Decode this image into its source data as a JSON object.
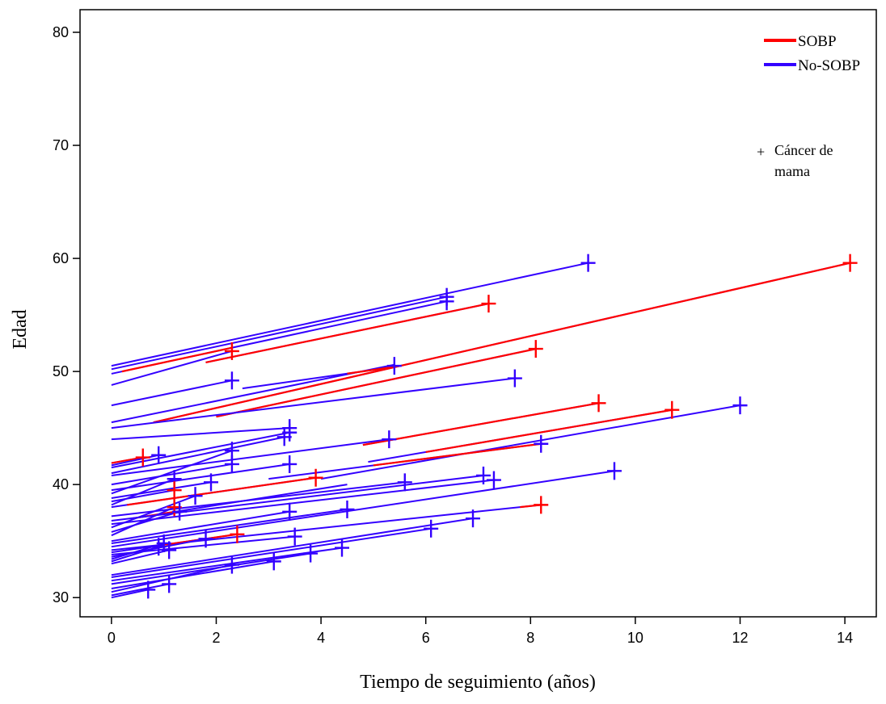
{
  "chart_data": {
    "type": "line",
    "title": "",
    "xlabel": "Tiempo de seguimiento (años)",
    "ylabel": "Edad",
    "xlim": [
      -0.6,
      14.6
    ],
    "ylim": [
      28.3,
      82.0
    ],
    "x_ticks": [
      0,
      2,
      4,
      6,
      8,
      10,
      12,
      14
    ],
    "y_ticks": [
      30,
      40,
      50,
      60,
      70,
      80
    ],
    "grid": false,
    "legend": {
      "position": "top-right",
      "entries": [
        {
          "name": "SOBP",
          "color": "#ff0000"
        },
        {
          "name": "No-SOBP",
          "color": "#3300ff"
        }
      ]
    },
    "marker_note": {
      "symbol": "+",
      "line1": "Cáncer de",
      "line2": "mama"
    },
    "colors": {
      "SOBP": "#ff0000",
      "No-SOBP": "#3300ff",
      "marker": "#000000"
    },
    "segments": [
      {
        "x1": 0,
        "y1": 50.5,
        "x2": 9.1,
        "y2": 59.6,
        "sobp_from": null,
        "sobp_to": null
      },
      {
        "x1": 0,
        "y1": 50.2,
        "x2": 6.4,
        "y2": 56.6,
        "sobp_from": null,
        "sobp_to": null
      },
      {
        "x1": 0,
        "y1": 49.8,
        "x2": 6.4,
        "y2": 56.2,
        "sobp_from": 0.2,
        "sobp_to": 2.3
      },
      {
        "x1": 1.8,
        "y1": 50.8,
        "x2": 7.2,
        "y2": 56.0,
        "sobp_from": 1.8,
        "sobp_to": 7.2
      },
      {
        "x1": 0.8,
        "y1": 45.5,
        "x2": 14.1,
        "y2": 59.6,
        "sobp_from": 0.8,
        "sobp_to": 14.1
      },
      {
        "x1": 0,
        "y1": 48.8,
        "x2": 2.3,
        "y2": 51.8,
        "sobp_from": null,
        "sobp_to": null
      },
      {
        "x1": 0,
        "y1": 47.0,
        "x2": 2.3,
        "y2": 49.2,
        "sobp_from": null,
        "sobp_to": null
      },
      {
        "x1": 0,
        "y1": 45.5,
        "x2": 5.4,
        "y2": 50.6,
        "sobp_from": null,
        "sobp_to": null
      },
      {
        "x1": 2.5,
        "y1": 48.5,
        "x2": 5.4,
        "y2": 50.4,
        "sobp_from": 4.5,
        "sobp_to": 5.4
      },
      {
        "x1": 2.0,
        "y1": 46.0,
        "x2": 8.1,
        "y2": 52.0,
        "sobp_from": 2.0,
        "sobp_to": 8.1
      },
      {
        "x1": 0,
        "y1": 45.0,
        "x2": 7.7,
        "y2": 49.4,
        "sobp_from": null,
        "sobp_to": null
      },
      {
        "x1": 0,
        "y1": 44.0,
        "x2": 3.4,
        "y2": 45.0,
        "sobp_from": null,
        "sobp_to": null
      },
      {
        "x1": 4.8,
        "y1": 43.5,
        "x2": 9.3,
        "y2": 47.2,
        "sobp_from": 4.8,
        "sobp_to": 9.3
      },
      {
        "x1": 4.9,
        "y1": 42.0,
        "x2": 10.7,
        "y2": 46.6,
        "sobp_from": 6.0,
        "sobp_to": 10.7
      },
      {
        "x1": 4.0,
        "y1": 40.5,
        "x2": 12.0,
        "y2": 47.0,
        "sobp_from": null,
        "sobp_to": null
      },
      {
        "x1": 0,
        "y1": 41.5,
        "x2": 3.4,
        "y2": 44.6,
        "sobp_from": null,
        "sobp_to": null
      },
      {
        "x1": 0,
        "y1": 41.0,
        "x2": 3.3,
        "y2": 44.2,
        "sobp_from": null,
        "sobp_to": null
      },
      {
        "x1": 0,
        "y1": 41.9,
        "x2": 0.6,
        "y2": 42.4,
        "sobp_from": 0.0,
        "sobp_to": 0.6
      },
      {
        "x1": 0,
        "y1": 41.7,
        "x2": 0.9,
        "y2": 42.6,
        "sobp_from": null,
        "sobp_to": null
      },
      {
        "x1": 0,
        "y1": 40.8,
        "x2": 5.3,
        "y2": 44.0,
        "sobp_from": null,
        "sobp_to": null
      },
      {
        "x1": 3.0,
        "y1": 40.5,
        "x2": 8.2,
        "y2": 43.6,
        "sobp_from": 5.0,
        "sobp_to": 8.2
      },
      {
        "x1": 0,
        "y1": 40.0,
        "x2": 2.3,
        "y2": 41.8,
        "sobp_from": null,
        "sobp_to": null
      },
      {
        "x1": 0,
        "y1": 39.5,
        "x2": 3.4,
        "y2": 41.8,
        "sobp_from": null,
        "sobp_to": null
      },
      {
        "x1": 0,
        "y1": 39.2,
        "x2": 2.3,
        "y2": 43.0,
        "sobp_from": null,
        "sobp_to": null
      },
      {
        "x1": 0,
        "y1": 38.8,
        "x2": 1.9,
        "y2": 40.2,
        "sobp_from": null,
        "sobp_to": null
      },
      {
        "x1": 0,
        "y1": 38.5,
        "x2": 1.2,
        "y2": 39.5,
        "sobp_from": null,
        "sobp_to": null
      },
      {
        "x1": 0,
        "y1": 38.2,
        "x2": 1.2,
        "y2": 40.5,
        "sobp_from": null,
        "sobp_to": null
      },
      {
        "x1": 0,
        "y1": 38.0,
        "x2": 3.9,
        "y2": 40.6,
        "sobp_from": 0.3,
        "sobp_to": 3.9
      },
      {
        "x1": 0.4,
        "y1": 37.0,
        "x2": 4.5,
        "y2": 40.0,
        "sobp_from": 0.4,
        "sobp_to": 1.2
      },
      {
        "x1": 0,
        "y1": 37.2,
        "x2": 5.6,
        "y2": 40.2,
        "sobp_from": null,
        "sobp_to": null
      },
      {
        "x1": 0,
        "y1": 36.8,
        "x2": 7.1,
        "y2": 40.8,
        "sobp_from": null,
        "sobp_to": null
      },
      {
        "x1": 0,
        "y1": 36.5,
        "x2": 7.3,
        "y2": 40.4,
        "sobp_from": null,
        "sobp_to": null
      },
      {
        "x1": 0,
        "y1": 36.2,
        "x2": 1.6,
        "y2": 39.0,
        "sobp_from": null,
        "sobp_to": null
      },
      {
        "x1": 0,
        "y1": 35.8,
        "x2": 1.3,
        "y2": 37.6,
        "sobp_from": null,
        "sobp_to": null
      },
      {
        "x1": 0,
        "y1": 35.5,
        "x2": 1.2,
        "y2": 38.0,
        "sobp_from": null,
        "sobp_to": null
      },
      {
        "x1": 0,
        "y1": 35.0,
        "x2": 3.4,
        "y2": 37.6,
        "sobp_from": null,
        "sobp_to": null
      },
      {
        "x1": 0,
        "y1": 34.8,
        "x2": 4.5,
        "y2": 37.8,
        "sobp_from": null,
        "sobp_to": null
      },
      {
        "x1": 0,
        "y1": 34.5,
        "x2": 9.6,
        "y2": 41.2,
        "sobp_from": null,
        "sobp_to": null
      },
      {
        "x1": 0,
        "y1": 34.2,
        "x2": 8.2,
        "y2": 38.2,
        "sobp_from": 7.8,
        "sobp_to": 8.2
      },
      {
        "x1": 0,
        "y1": 34.0,
        "x2": 2.4,
        "y2": 35.6,
        "sobp_from": 1.0,
        "sobp_to": 2.4
      },
      {
        "x1": 0,
        "y1": 33.8,
        "x2": 3.5,
        "y2": 35.4,
        "sobp_from": null,
        "sobp_to": null
      },
      {
        "x1": 0,
        "y1": 33.6,
        "x2": 1.8,
        "y2": 35.2,
        "sobp_from": null,
        "sobp_to": null
      },
      {
        "x1": 0,
        "y1": 33.4,
        "x2": 1.0,
        "y2": 34.8,
        "sobp_from": null,
        "sobp_to": null
      },
      {
        "x1": 0,
        "y1": 33.2,
        "x2": 0.9,
        "y2": 34.5,
        "sobp_from": null,
        "sobp_to": null
      },
      {
        "x1": 0,
        "y1": 33.0,
        "x2": 1.1,
        "y2": 34.2,
        "sobp_from": null,
        "sobp_to": null
      },
      {
        "x1": 0,
        "y1": 32.0,
        "x2": 6.9,
        "y2": 37.0,
        "sobp_from": null,
        "sobp_to": null
      },
      {
        "x1": 0,
        "y1": 31.8,
        "x2": 6.1,
        "y2": 36.1,
        "sobp_from": null,
        "sobp_to": null
      },
      {
        "x1": 0,
        "y1": 31.5,
        "x2": 4.4,
        "y2": 34.4,
        "sobp_from": null,
        "sobp_to": null
      },
      {
        "x1": 0,
        "y1": 31.2,
        "x2": 3.8,
        "y2": 33.9,
        "sobp_from": null,
        "sobp_to": null
      },
      {
        "x1": 0,
        "y1": 30.8,
        "x2": 3.1,
        "y2": 33.2,
        "sobp_from": null,
        "sobp_to": null
      },
      {
        "x1": 0,
        "y1": 30.5,
        "x2": 2.3,
        "y2": 32.9,
        "sobp_from": null,
        "sobp_to": null
      },
      {
        "x1": 0,
        "y1": 30.2,
        "x2": 1.1,
        "y2": 31.2,
        "sobp_from": null,
        "sobp_to": null
      },
      {
        "x1": 0,
        "y1": 30.0,
        "x2": 0.7,
        "y2": 30.7,
        "sobp_from": null,
        "sobp_to": null
      }
    ],
    "events": [
      {
        "x": 9.1,
        "y": 59.6,
        "group": "No-SOBP"
      },
      {
        "x": 14.1,
        "y": 59.6,
        "group": "SOBP"
      },
      {
        "x": 6.4,
        "y": 56.6,
        "group": "No-SOBP"
      },
      {
        "x": 6.4,
        "y": 56.2,
        "group": "No-SOBP"
      },
      {
        "x": 7.2,
        "y": 56.0,
        "group": "SOBP"
      },
      {
        "x": 2.3,
        "y": 51.8,
        "group": "SOBP"
      },
      {
        "x": 8.1,
        "y": 52.0,
        "group": "SOBP"
      },
      {
        "x": 5.4,
        "y": 50.5,
        "group": "No-SOBP"
      },
      {
        "x": 2.3,
        "y": 49.2,
        "group": "No-SOBP"
      },
      {
        "x": 7.7,
        "y": 49.4,
        "group": "No-SOBP"
      },
      {
        "x": 9.3,
        "y": 47.2,
        "group": "SOBP"
      },
      {
        "x": 10.7,
        "y": 46.6,
        "group": "SOBP"
      },
      {
        "x": 12.0,
        "y": 47.0,
        "group": "No-SOBP"
      },
      {
        "x": 3.4,
        "y": 45.0,
        "group": "No-SOBP"
      },
      {
        "x": 3.4,
        "y": 44.6,
        "group": "No-SOBP"
      },
      {
        "x": 3.3,
        "y": 44.2,
        "group": "No-SOBP"
      },
      {
        "x": 5.3,
        "y": 44.0,
        "group": "No-SOBP"
      },
      {
        "x": 8.2,
        "y": 43.6,
        "group": "No-SOBP"
      },
      {
        "x": 0.6,
        "y": 42.4,
        "group": "SOBP"
      },
      {
        "x": 0.9,
        "y": 42.6,
        "group": "No-SOBP"
      },
      {
        "x": 2.3,
        "y": 43.0,
        "group": "No-SOBP"
      },
      {
        "x": 2.3,
        "y": 41.8,
        "group": "No-SOBP"
      },
      {
        "x": 3.4,
        "y": 41.8,
        "group": "No-SOBP"
      },
      {
        "x": 9.6,
        "y": 41.2,
        "group": "No-SOBP"
      },
      {
        "x": 7.1,
        "y": 40.8,
        "group": "No-SOBP"
      },
      {
        "x": 7.3,
        "y": 40.4,
        "group": "No-SOBP"
      },
      {
        "x": 3.9,
        "y": 40.6,
        "group": "SOBP"
      },
      {
        "x": 5.6,
        "y": 40.2,
        "group": "No-SOBP"
      },
      {
        "x": 1.9,
        "y": 40.2,
        "group": "No-SOBP"
      },
      {
        "x": 1.2,
        "y": 40.5,
        "group": "No-SOBP"
      },
      {
        "x": 1.2,
        "y": 39.5,
        "group": "SOBP"
      },
      {
        "x": 1.6,
        "y": 39.0,
        "group": "No-SOBP"
      },
      {
        "x": 1.2,
        "y": 38.0,
        "group": "SOBP"
      },
      {
        "x": 8.2,
        "y": 38.2,
        "group": "SOBP"
      },
      {
        "x": 1.3,
        "y": 37.6,
        "group": "No-SOBP"
      },
      {
        "x": 3.4,
        "y": 37.6,
        "group": "No-SOBP"
      },
      {
        "x": 4.5,
        "y": 37.8,
        "group": "No-SOBP"
      },
      {
        "x": 6.9,
        "y": 37.0,
        "group": "No-SOBP"
      },
      {
        "x": 6.1,
        "y": 36.1,
        "group": "No-SOBP"
      },
      {
        "x": 2.4,
        "y": 35.6,
        "group": "SOBP"
      },
      {
        "x": 3.5,
        "y": 35.4,
        "group": "No-SOBP"
      },
      {
        "x": 1.8,
        "y": 35.2,
        "group": "No-SOBP"
      },
      {
        "x": 1.0,
        "y": 34.8,
        "group": "No-SOBP"
      },
      {
        "x": 0.9,
        "y": 34.5,
        "group": "No-SOBP"
      },
      {
        "x": 4.4,
        "y": 34.4,
        "group": "No-SOBP"
      },
      {
        "x": 1.1,
        "y": 34.2,
        "group": "No-SOBP"
      },
      {
        "x": 3.8,
        "y": 33.9,
        "group": "No-SOBP"
      },
      {
        "x": 3.1,
        "y": 33.2,
        "group": "No-SOBP"
      },
      {
        "x": 2.3,
        "y": 32.9,
        "group": "No-SOBP"
      },
      {
        "x": 1.1,
        "y": 31.2,
        "group": "No-SOBP"
      },
      {
        "x": 0.7,
        "y": 30.7,
        "group": "No-SOBP"
      }
    ]
  }
}
